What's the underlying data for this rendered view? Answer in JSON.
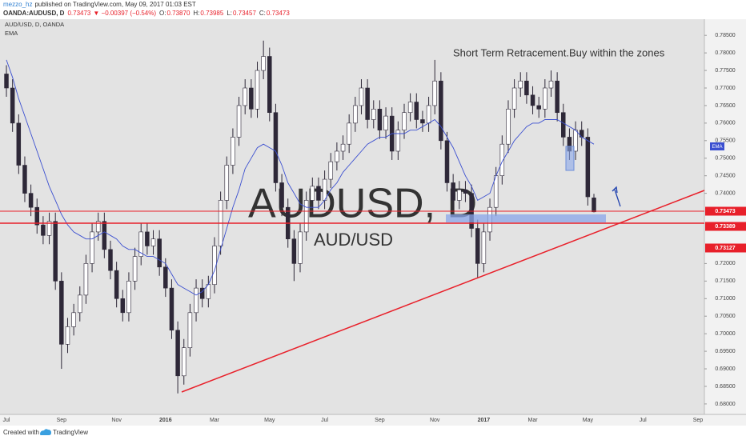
{
  "header": {
    "author": "mezzo_hz",
    "published": "published on TradingView.com, May 09, 2017 01:03 EST",
    "symbol": "OANDA:AUDUSD, D",
    "last": "0.73473",
    "change": "▼ −0.00397 (−0.54%)",
    "quote": [
      [
        "O:",
        "0.73870"
      ],
      [
        "H:",
        "0.73985"
      ],
      [
        "L:",
        "0.73457"
      ],
      [
        "C:",
        "0.73473"
      ]
    ]
  },
  "chart_data": {
    "type": "candlestick",
    "title": "AUD/USD, D, OANDA",
    "watermark": [
      "AUDUSD, D",
      "AUD/USD"
    ],
    "annotation": "Short Term Retracement.Buy within the zones",
    "annotation_color": "#e8202a",
    "up_color": "#ffffff",
    "down_color": "#2e2838",
    "wick_color": "#2e2838",
    "categories": [
      "Jul",
      null,
      null,
      null,
      null,
      null,
      null,
      null,
      null,
      "Sep",
      null,
      null,
      null,
      null,
      null,
      null,
      null,
      null,
      "Nov",
      null,
      null,
      null,
      null,
      null,
      null,
      null,
      "2016",
      null,
      null,
      null,
      null,
      null,
      null,
      null,
      "Mar",
      null,
      null,
      null,
      null,
      null,
      null,
      null,
      null,
      "May",
      null,
      null,
      null,
      null,
      null,
      null,
      null,
      null,
      "Jul",
      null,
      null,
      null,
      null,
      null,
      null,
      null,
      null,
      "Sep",
      null,
      null,
      null,
      null,
      null,
      null,
      null,
      null,
      "Nov",
      null,
      null,
      null,
      null,
      null,
      null,
      null,
      "2017",
      null,
      null,
      null,
      null,
      null,
      null,
      null,
      "Mar",
      null,
      null,
      null,
      null,
      null,
      null,
      null,
      null,
      "May",
      null,
      null,
      null,
      null,
      null,
      null,
      null,
      null,
      "Jul",
      null,
      null,
      null,
      null,
      null,
      null,
      null,
      null,
      "Sep"
    ],
    "open": [
      0.774,
      0.77,
      0.76,
      0.748,
      0.74,
      0.736,
      0.731,
      0.728,
      0.732,
      0.715,
      0.697,
      0.702,
      0.706,
      0.711,
      0.72,
      0.729,
      0.732,
      0.724,
      0.718,
      0.71,
      0.706,
      0.715,
      0.722,
      0.729,
      0.725,
      0.727,
      0.719,
      0.713,
      0.701,
      0.688,
      0.696,
      0.706,
      0.713,
      0.71,
      0.714,
      0.725,
      0.738,
      0.748,
      0.756,
      0.765,
      0.77,
      0.764,
      0.775,
      0.779,
      0.763,
      0.743,
      0.736,
      0.727,
      0.72,
      0.729,
      0.738,
      0.742,
      0.738,
      0.744,
      0.749,
      0.752,
      0.754,
      0.76,
      0.765,
      0.77,
      0.761,
      0.764,
      0.758,
      0.762,
      0.752,
      0.758,
      0.763,
      0.766,
      0.761,
      0.76,
      0.765,
      0.772,
      0.755,
      0.743,
      0.738,
      0.741,
      0.74,
      0.73,
      0.72,
      0.729,
      0.736,
      0.745,
      0.754,
      0.764,
      0.77,
      0.772,
      0.768,
      0.765,
      0.764,
      0.77,
      0.772,
      0.763,
      0.756,
      0.752,
      0.758,
      0.756,
      0.7387,
      null,
      null,
      null,
      null,
      null,
      null,
      null,
      null,
      null,
      null,
      null,
      null,
      null,
      null,
      null,
      null,
      null
    ],
    "high": [
      0.7765,
      0.7725,
      0.7625,
      0.7505,
      0.7425,
      0.7385,
      0.7335,
      0.7345,
      0.7345,
      0.7175,
      0.7045,
      0.7085,
      0.7135,
      0.7225,
      0.7315,
      0.7345,
      0.7345,
      0.7265,
      0.7205,
      0.7125,
      0.7175,
      0.7245,
      0.7315,
      0.7315,
      0.7295,
      0.7295,
      0.7215,
      0.7155,
      0.7035,
      0.6985,
      0.7085,
      0.7155,
      0.7155,
      0.7165,
      0.7275,
      0.7405,
      0.7505,
      0.7585,
      0.7675,
      0.7725,
      0.7725,
      0.7775,
      0.7835,
      0.7815,
      0.7655,
      0.7455,
      0.7385,
      0.7295,
      0.7315,
      0.7405,
      0.7445,
      0.7445,
      0.7465,
      0.7515,
      0.7545,
      0.7565,
      0.7625,
      0.7675,
      0.7725,
      0.7725,
      0.7665,
      0.7665,
      0.7645,
      0.7645,
      0.7605,
      0.7655,
      0.7685,
      0.7685,
      0.7635,
      0.7675,
      0.778,
      0.7745,
      0.7575,
      0.7455,
      0.7435,
      0.7435,
      0.7425,
      0.7325,
      0.7315,
      0.7385,
      0.7475,
      0.7565,
      0.7665,
      0.7725,
      0.7745,
      0.7745,
      0.7705,
      0.7675,
      0.7725,
      0.775,
      0.7745,
      0.7655,
      0.7585,
      0.7605,
      0.7605,
      0.7585,
      0.73985,
      null,
      null,
      null,
      null,
      null,
      null,
      null,
      null,
      null,
      null,
      null,
      null,
      null,
      null,
      null,
      null,
      null
    ],
    "low": [
      0.7675,
      0.7575,
      0.7455,
      0.7375,
      0.7335,
      0.7285,
      0.7255,
      0.7255,
      0.7125,
      0.69,
      0.6945,
      0.6995,
      0.7035,
      0.7085,
      0.7175,
      0.7265,
      0.7215,
      0.7155,
      0.7075,
      0.7035,
      0.7035,
      0.7125,
      0.7195,
      0.7225,
      0.7225,
      0.7165,
      0.7105,
      0.6985,
      0.683,
      0.6855,
      0.6935,
      0.7035,
      0.7075,
      0.7075,
      0.7115,
      0.7225,
      0.7355,
      0.7455,
      0.7535,
      0.7625,
      0.7615,
      0.7615,
      0.7725,
      0.7605,
      0.7405,
      0.7335,
      0.7245,
      0.715,
      0.7175,
      0.7265,
      0.7355,
      0.7355,
      0.7355,
      0.7415,
      0.7465,
      0.7495,
      0.7515,
      0.7575,
      0.7625,
      0.7585,
      0.7585,
      0.7555,
      0.7555,
      0.7495,
      0.7495,
      0.7555,
      0.7605,
      0.7585,
      0.7575,
      0.7575,
      0.7625,
      0.7525,
      0.7405,
      0.7355,
      0.7355,
      0.7375,
      0.7275,
      0.716,
      0.7175,
      0.7265,
      0.7335,
      0.7425,
      0.7515,
      0.7615,
      0.7675,
      0.7655,
      0.7625,
      0.7615,
      0.7615,
      0.7675,
      0.7605,
      0.7535,
      0.7495,
      0.7495,
      0.7535,
      0.7365,
      0.73457,
      null,
      null,
      null,
      null,
      null,
      null,
      null,
      null,
      null,
      null,
      null,
      null,
      null,
      null,
      null,
      null,
      null
    ],
    "close": [
      0.77,
      0.76,
      0.748,
      0.74,
      0.736,
      0.731,
      0.728,
      0.732,
      0.715,
      0.697,
      0.702,
      0.706,
      0.711,
      0.72,
      0.729,
      0.732,
      0.724,
      0.718,
      0.71,
      0.706,
      0.715,
      0.722,
      0.729,
      0.725,
      0.727,
      0.719,
      0.713,
      0.701,
      0.688,
      0.696,
      0.706,
      0.713,
      0.71,
      0.714,
      0.725,
      0.738,
      0.748,
      0.756,
      0.765,
      0.77,
      0.764,
      0.775,
      0.779,
      0.763,
      0.743,
      0.736,
      0.727,
      0.72,
      0.729,
      0.738,
      0.742,
      0.738,
      0.744,
      0.749,
      0.752,
      0.754,
      0.76,
      0.765,
      0.77,
      0.761,
      0.764,
      0.758,
      0.762,
      0.752,
      0.758,
      0.763,
      0.766,
      0.761,
      0.76,
      0.765,
      0.772,
      0.755,
      0.743,
      0.738,
      0.741,
      0.74,
      0.73,
      0.72,
      0.729,
      0.736,
      0.745,
      0.754,
      0.764,
      0.77,
      0.772,
      0.768,
      0.765,
      0.764,
      0.77,
      0.772,
      0.763,
      0.756,
      0.752,
      0.758,
      0.756,
      0.739,
      0.73473,
      null,
      null,
      null,
      null,
      null,
      null,
      null,
      null,
      null,
      null,
      null,
      null,
      null,
      null,
      null,
      null,
      null
    ],
    "series": [
      {
        "name": "EMA",
        "color": "#3b4fd0",
        "values": [
          0.778,
          0.773,
          0.767,
          0.762,
          0.757,
          0.752,
          0.747,
          0.742,
          0.738,
          0.734,
          0.731,
          0.729,
          0.728,
          0.727,
          0.727,
          0.728,
          0.729,
          0.728,
          0.727,
          0.725,
          0.724,
          0.724,
          0.723,
          0.722,
          0.722,
          0.721,
          0.72,
          0.717,
          0.714,
          0.713,
          0.712,
          0.711,
          0.712,
          0.714,
          0.718,
          0.724,
          0.73,
          0.736,
          0.741,
          0.747,
          0.75,
          0.753,
          0.754,
          0.753,
          0.752,
          0.748,
          0.743,
          0.74,
          0.737,
          0.736,
          0.736,
          0.736,
          0.738,
          0.741,
          0.743,
          0.746,
          0.748,
          0.75,
          0.752,
          0.754,
          0.755,
          0.756,
          0.756,
          0.757,
          0.757,
          0.757,
          0.758,
          0.758,
          0.759,
          0.76,
          0.761,
          0.759,
          0.756,
          0.753,
          0.749,
          0.745,
          0.742,
          0.738,
          0.739,
          0.74,
          0.745,
          0.749,
          0.752,
          0.755,
          0.757,
          0.759,
          0.76,
          0.76,
          0.761,
          0.761,
          0.761,
          0.76,
          0.759,
          0.758,
          0.756,
          0.755,
          0.754,
          null,
          null,
          null,
          null,
          null,
          null,
          null,
          null,
          null,
          null,
          null,
          null,
          null,
          null,
          null,
          null,
          null
        ]
      }
    ],
    "ylim": [
      0.6777,
      0.7896
    ],
    "yticks": [
      {
        "value": 0.785,
        "label": "0.78500"
      },
      {
        "value": 0.78,
        "label": "0.78000"
      },
      {
        "value": 0.775,
        "label": "0.77500"
      },
      {
        "value": 0.77,
        "label": "0.77000"
      },
      {
        "value": 0.765,
        "label": "0.76500"
      },
      {
        "value": 0.76,
        "label": "0.76000"
      },
      {
        "value": 0.755,
        "label": "0.75500"
      },
      {
        "value": 0.75,
        "label": "0.75000"
      },
      {
        "value": 0.745,
        "label": "0.74500"
      },
      {
        "value": 0.74,
        "label": "0.74000"
      },
      {
        "value": 0.72,
        "label": "0.72000"
      },
      {
        "value": 0.715,
        "label": "0.71500"
      },
      {
        "value": 0.71,
        "label": "0.71000"
      },
      {
        "value": 0.705,
        "label": "0.70500"
      },
      {
        "value": 0.7,
        "label": "0.70000"
      },
      {
        "value": 0.695,
        "label": "0.69500"
      },
      {
        "value": 0.69,
        "label": "0.69000"
      },
      {
        "value": 0.685,
        "label": "0.68500"
      },
      {
        "value": 0.68,
        "label": "0.68000"
      }
    ],
    "price_tags": [
      0.73473,
      0.73389,
      0.73127
    ],
    "tag_color": "#e8202a",
    "grid": false
  },
  "footer": {
    "created": "Created with",
    "brand": "TradingView"
  }
}
